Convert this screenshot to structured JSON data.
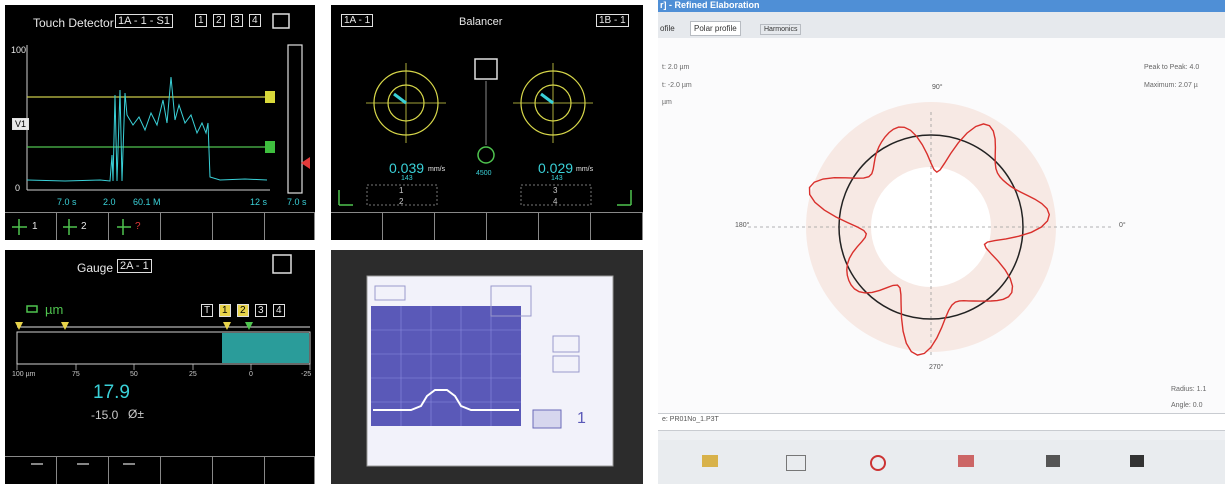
{
  "touch_detector": {
    "title": "Touch Detector",
    "channel": "1A - 1 - S1",
    "buttons": [
      "1",
      "2",
      "3",
      "4"
    ],
    "y_top": "100",
    "y_bottom": "0",
    "level_label": "V1",
    "status_left": "7.0 s",
    "status_mid": "2.0",
    "status_mid2": "60.1 M",
    "status_right": "12 s",
    "bar_value": "7.0 s",
    "softkeys": [
      "1",
      "2",
      "?"
    ]
  },
  "balancer": {
    "title": "Balancer",
    "left_channel": "1A - 1",
    "right_channel": "1B - 1",
    "left_value": "0.039",
    "left_unit": "mm/s",
    "left_angle": "143",
    "right_value": "0.029",
    "right_unit": "mm/s",
    "right_angle": "143",
    "rpm": "4500",
    "left_index": "1",
    "left_index2": "2",
    "right_index": "3",
    "right_index2": "4"
  },
  "gauge": {
    "title": "Gauge",
    "channel": "2A - 1",
    "unit": "µm",
    "buttons": [
      "T",
      "1",
      "2",
      "3",
      "4"
    ],
    "scale": [
      "100 µm",
      "75",
      "50",
      "25",
      "0",
      "-25"
    ],
    "value": "17.9",
    "secondary": "-15.0",
    "secondary_symbol": "Ø±",
    "bar_fill_fraction": 0.3
  },
  "device_screen": {
    "channel_value": "1"
  },
  "polar": {
    "window_title": "r] - Refined Elaboration",
    "tabs": [
      "ofile",
      "Polar profile",
      "Harmonics"
    ],
    "left_info": [
      "t: 2.0 µm",
      "t: -2.0 µm",
      "µm"
    ],
    "right_info": [
      "Peak to Peak: 4.0",
      "Maximum: 2.07 µ"
    ],
    "angle_90": "90°",
    "angle_180": "180°",
    "angle_0": "0°",
    "angle_270": "270°",
    "radius_label": "Radius: 1.1",
    "angle_label": "Angle: 0.0",
    "filename": "e: PR01No_1.P3T",
    "colors": {
      "profile": "#d9302c",
      "reference": "#222222",
      "annulus": "#f7e9e4"
    }
  }
}
